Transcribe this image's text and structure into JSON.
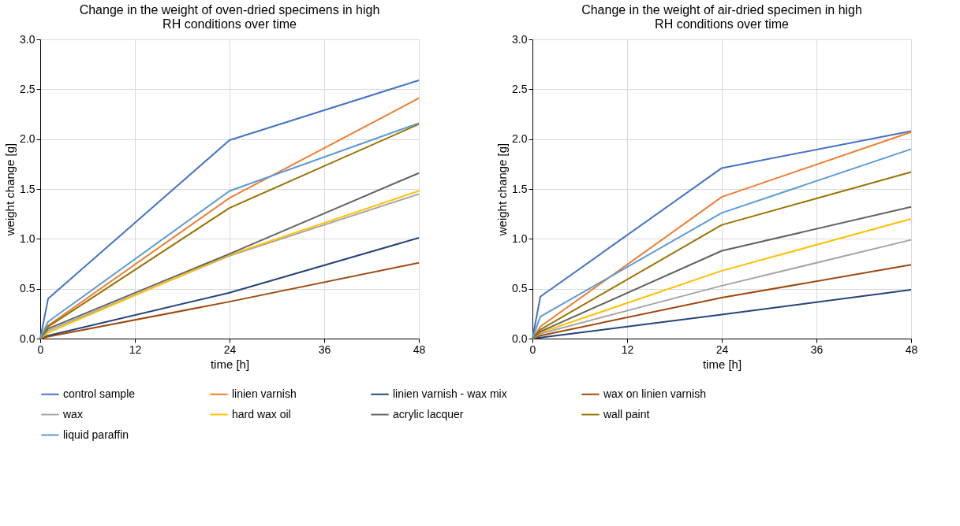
{
  "chart_data": [
    {
      "type": "line",
      "title": "Change in the weight of oven-dried specimens in high RH conditions over time",
      "xlabel": "time [h]",
      "ylabel": "weight change [g]",
      "x": [
        0,
        1,
        24,
        48
      ],
      "xlim": [
        0,
        48
      ],
      "xticks": [
        0,
        12,
        24,
        36,
        48
      ],
      "ylim": [
        0,
        3
      ],
      "yticks": [
        {
          "value": 0,
          "label": "0.0"
        },
        {
          "value": 0.5,
          "label": "0.5"
        },
        {
          "value": 1,
          "label": "1.0"
        },
        {
          "value": 1.5,
          "label": "1.5"
        },
        {
          "value": 2,
          "label": "2.0"
        },
        {
          "value": 2.5,
          "label": "2.5"
        },
        {
          "value": 3,
          "label": "3.0"
        }
      ],
      "grid": true,
      "legend": "bottom",
      "marker": "none",
      "line_style": "solid",
      "series": [
        {
          "name": "control sample",
          "color": "#4472c4",
          "values": [
            0,
            0.4,
            1.99,
            2.59
          ]
        },
        {
          "name": "linien varnish",
          "color": "#ed7d31",
          "values": [
            0,
            0.13,
            1.41,
            2.41
          ]
        },
        {
          "name": "linien varnish - wax mix",
          "color": "#264478",
          "values": [
            0,
            0.03,
            0.46,
            1.01
          ]
        },
        {
          "name": "wax on linien varnish",
          "color": "#9e480e",
          "values": [
            0,
            0.02,
            0.37,
            0.76
          ]
        },
        {
          "name": "wax",
          "color": "#a5a5a5",
          "values": [
            0,
            0.08,
            0.83,
            1.45
          ]
        },
        {
          "name": "hard wax oil",
          "color": "#ffc000",
          "values": [
            0,
            0.06,
            0.84,
            1.48
          ]
        },
        {
          "name": "acrylic lacquer",
          "color": "#636363",
          "values": [
            0,
            0.1,
            0.85,
            1.66
          ]
        },
        {
          "name": "wall paint",
          "color": "#997300",
          "values": [
            0,
            0.12,
            1.31,
            2.15
          ]
        },
        {
          "name": "liquid paraffin",
          "color": "#5b9bd5",
          "values": [
            0,
            0.17,
            1.48,
            2.16
          ]
        }
      ]
    },
    {
      "type": "line",
      "title": "Change in the weight of air-dried specimen in high RH conditions over time",
      "xlabel": "time [h]",
      "ylabel": "weight change [g]",
      "x": [
        0,
        1,
        24,
        48
      ],
      "xlim": [
        0,
        48
      ],
      "xticks": [
        0,
        12,
        24,
        36,
        48
      ],
      "ylim": [
        0,
        3
      ],
      "yticks": [
        {
          "value": 0,
          "label": "0.0"
        },
        {
          "value": 0.5,
          "label": "0.5"
        },
        {
          "value": 1,
          "label": "1.0"
        },
        {
          "value": 1.5,
          "label": "1.5"
        },
        {
          "value": 2,
          "label": "2.0"
        },
        {
          "value": 2.5,
          "label": "2.5"
        },
        {
          "value": 3,
          "label": "3.0"
        }
      ],
      "grid": true,
      "legend": "bottom",
      "marker": "none",
      "line_style": "solid",
      "series": [
        {
          "name": "control sample",
          "color": "#4472c4",
          "values": [
            0,
            0.42,
            1.71,
            2.08
          ]
        },
        {
          "name": "linien varnish",
          "color": "#ed7d31",
          "values": [
            0,
            0.12,
            1.42,
            2.07
          ]
        },
        {
          "name": "linien varnish - wax mix",
          "color": "#264478",
          "values": [
            0,
            0.01,
            0.24,
            0.49
          ]
        },
        {
          "name": "wax on linien varnish",
          "color": "#9e480e",
          "values": [
            0,
            0.03,
            0.41,
            0.74
          ]
        },
        {
          "name": "wax",
          "color": "#a5a5a5",
          "values": [
            0,
            0.05,
            0.53,
            0.99
          ]
        },
        {
          "name": "hard wax oil",
          "color": "#ffc000",
          "values": [
            0,
            0.06,
            0.68,
            1.2
          ]
        },
        {
          "name": "acrylic lacquer",
          "color": "#636363",
          "values": [
            0,
            0.07,
            0.88,
            1.32
          ]
        },
        {
          "name": "wall paint",
          "color": "#997300",
          "values": [
            0,
            0.09,
            1.14,
            1.67
          ]
        },
        {
          "name": "liquid paraffin",
          "color": "#5b9bd5",
          "values": [
            0,
            0.22,
            1.26,
            1.9
          ]
        }
      ]
    }
  ]
}
